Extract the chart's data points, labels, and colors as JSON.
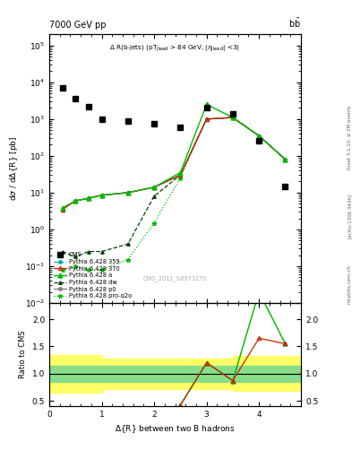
{
  "title_left": "7000 GeV pp",
  "title_right": "b$\\bar{\\text{b}}$",
  "inner_title": "Δ R(b-jets) (pT$_{\\rm Jlead}$ > 84 GeV, |\\eta$_{\\rm Jlead}$| <3)",
  "xlabel": "Δ{R} between two B hadrons",
  "ylabel": "dσ / dΔ{R} [pb]",
  "ylabel_ratio": "Ratio to CMS",
  "watermark": "CMS_2011_S8973270",
  "cms_data_x": [
    0.25,
    0.5,
    0.75,
    1.0,
    1.5,
    2.0,
    2.5,
    3.0,
    3.5,
    4.0,
    4.5
  ],
  "cms_data_y": [
    7000.0,
    3500.0,
    2200.0,
    1000.0,
    900.0,
    750.0,
    600.0,
    2000.0,
    1400.0,
    250.0,
    15.0
  ],
  "py359_x": [
    0.25,
    0.5,
    0.75,
    1.0,
    1.5,
    2.0,
    2.5,
    3.0,
    3.5,
    4.0,
    4.5
  ],
  "py359_y": [
    3.5,
    6.0,
    7.0,
    8.5,
    10.0,
    14.0,
    30.0,
    1000.0,
    1100.0,
    350.0,
    80.0
  ],
  "py370_x": [
    0.25,
    0.5,
    0.75,
    1.0,
    1.5,
    2.0,
    2.5,
    3.0,
    3.5,
    4.0,
    4.5
  ],
  "py370_y": [
    3.5,
    6.0,
    7.0,
    8.5,
    10.0,
    14.0,
    30.0,
    1000.0,
    1100.0,
    350.0,
    80.0
  ],
  "pya_x": [
    0.25,
    0.5,
    0.75,
    1.0,
    1.5,
    2.0,
    2.5,
    3.0,
    3.5,
    4.0,
    4.5
  ],
  "pya_y": [
    3.8,
    6.0,
    7.0,
    8.5,
    10.0,
    14.0,
    35.0,
    2500.0,
    1100.0,
    350.0,
    80.0
  ],
  "pydw_x": [
    0.25,
    0.5,
    0.75,
    1.0,
    1.5,
    2.0,
    2.5,
    3.0,
    3.5,
    4.0,
    4.5
  ],
  "pydw_y": [
    0.25,
    0.18,
    0.25,
    0.25,
    0.4,
    8.0,
    30.0,
    1000.0,
    1100.0,
    350.0,
    80.0
  ],
  "pyp0_x": [
    0.25,
    0.5,
    0.75,
    1.0,
    1.5,
    2.0,
    2.5,
    3.0,
    3.5,
    4.0,
    4.5
  ],
  "pyp0_y": [
    3.5,
    6.0,
    7.0,
    8.5,
    10.0,
    14.0,
    30.0,
    1000.0,
    1100.0,
    350.0,
    80.0
  ],
  "pyproq2o_x": [
    0.25,
    0.5,
    0.75,
    1.0,
    1.5,
    2.0,
    2.5,
    3.0,
    3.5,
    4.0,
    4.5
  ],
  "pyproq2o_y": [
    0.08,
    0.1,
    0.08,
    0.08,
    0.15,
    1.5,
    25.0,
    1000.0,
    1100.0,
    350.0,
    80.0
  ],
  "xlim": [
    0.0,
    4.8
  ],
  "ylim_main": [
    0.01,
    200000.0
  ],
  "ylim_ratio": [
    0.4,
    2.3
  ],
  "ratio_yticks": [
    0.5,
    1.0,
    1.5,
    2.0
  ],
  "green_color": "#00bb00",
  "red_color": "#cc2200",
  "cyan_color": "#00aaaa",
  "gray_color": "#777777",
  "band_green_lo": 0.85,
  "band_green_hi": 1.15,
  "band_yellow_lo": 0.65,
  "band_yellow_hi": 1.35,
  "band_x_edges": [
    0.0,
    0.5,
    1.0,
    1.5,
    2.5,
    3.5,
    4.0,
    4.8
  ],
  "band_green_lo_vals": [
    0.85,
    0.85,
    0.85,
    0.85,
    0.85,
    0.85,
    0.85,
    0.85
  ],
  "band_green_hi_vals": [
    1.15,
    1.15,
    1.15,
    1.15,
    1.15,
    1.15,
    1.15,
    1.15
  ],
  "band_yellow_lo_vals": [
    0.65,
    0.65,
    0.72,
    0.72,
    0.72,
    0.68,
    0.68,
    0.68
  ],
  "band_yellow_hi_vals": [
    1.35,
    1.35,
    1.28,
    1.28,
    1.28,
    1.32,
    1.32,
    1.32
  ],
  "ratio_line_x": [
    2.5,
    3.0,
    3.5,
    4.0,
    4.5
  ],
  "ratio_line_green": [
    0.42,
    1.2,
    0.87,
    2.5,
    1.55
  ],
  "ratio_line_red": [
    0.42,
    1.2,
    0.87,
    1.65,
    1.55
  ]
}
